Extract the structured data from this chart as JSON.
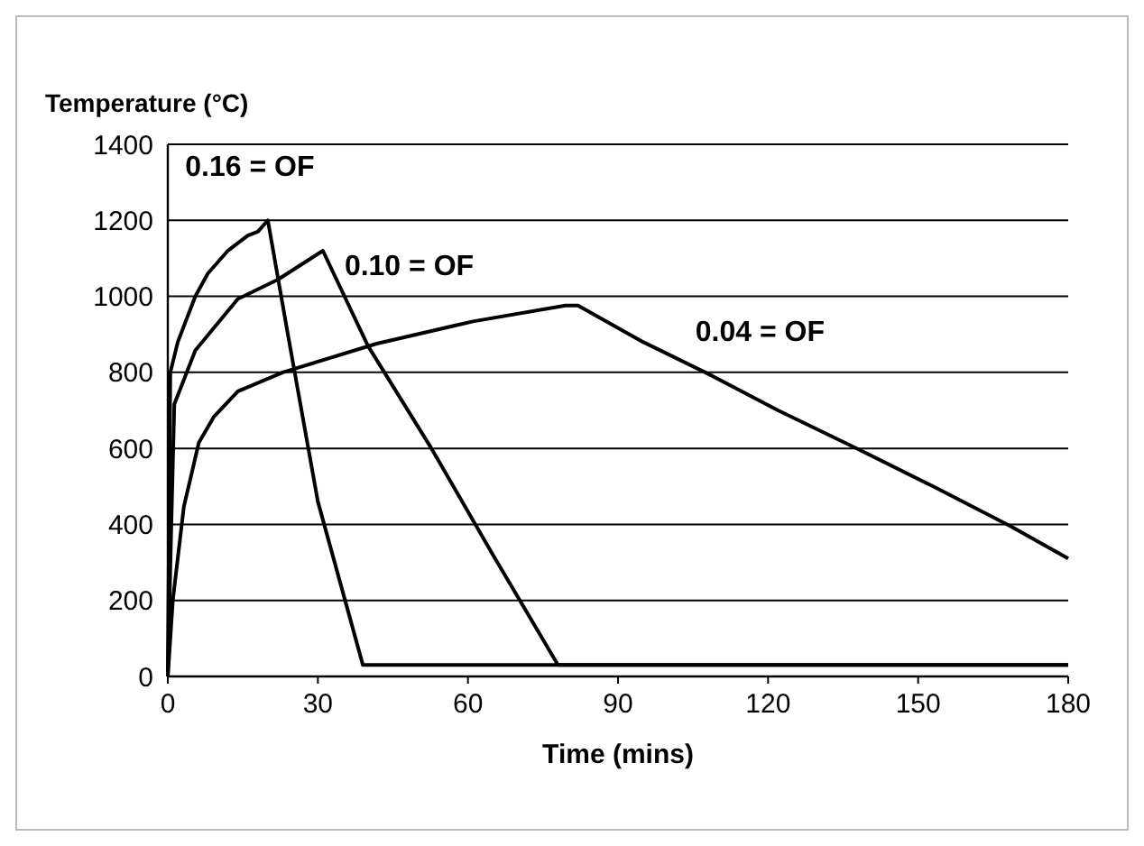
{
  "chart_data": {
    "type": "line",
    "ylabel": "Temperature (°C)",
    "xlabel": "Time (mins)",
    "xlim": [
      0,
      180
    ],
    "xticks": [
      0,
      30,
      60,
      90,
      120,
      150,
      180
    ],
    "ylim": [
      0,
      1400
    ],
    "yticks": [
      0,
      200,
      400,
      600,
      800,
      1000,
      1200,
      1400
    ],
    "grid": "y",
    "line_style": "solid",
    "marker": "none",
    "series": [
      {
        "name": "0.16 = OF",
        "color": "#000000",
        "x": [
          0,
          0.5,
          2,
          5.5,
          8,
          12,
          16,
          18,
          20,
          24,
          30,
          39,
          60,
          90,
          120,
          150,
          180
        ],
        "values": [
          0,
          800,
          880,
          1000,
          1060,
          1120,
          1160,
          1170,
          1200,
          900,
          460,
          30,
          30,
          30,
          30,
          30,
          30
        ]
      },
      {
        "name": "0.10 = OF",
        "color": "#000000",
        "x": [
          0,
          0.7,
          1.3,
          5.5,
          14,
          22,
          31,
          40,
          52.7,
          65,
          78,
          100,
          130,
          160,
          180
        ],
        "values": [
          0,
          400,
          716,
          858,
          993,
          1044,
          1120,
          870,
          600,
          320,
          30,
          30,
          30,
          30,
          30
        ]
      },
      {
        "name": "0.04 = OF",
        "color": "#000000",
        "x": [
          0,
          1,
          3.2,
          6.2,
          9.2,
          14,
          23,
          41.6,
          61,
          79.5,
          82,
          95,
          108.8,
          122,
          138,
          153,
          168.5,
          180
        ],
        "values": [
          0,
          200,
          446,
          615,
          683,
          750,
          800,
          875,
          934,
          976,
          976,
          880,
          791,
          700,
          598,
          500,
          395,
          310
        ]
      }
    ]
  }
}
